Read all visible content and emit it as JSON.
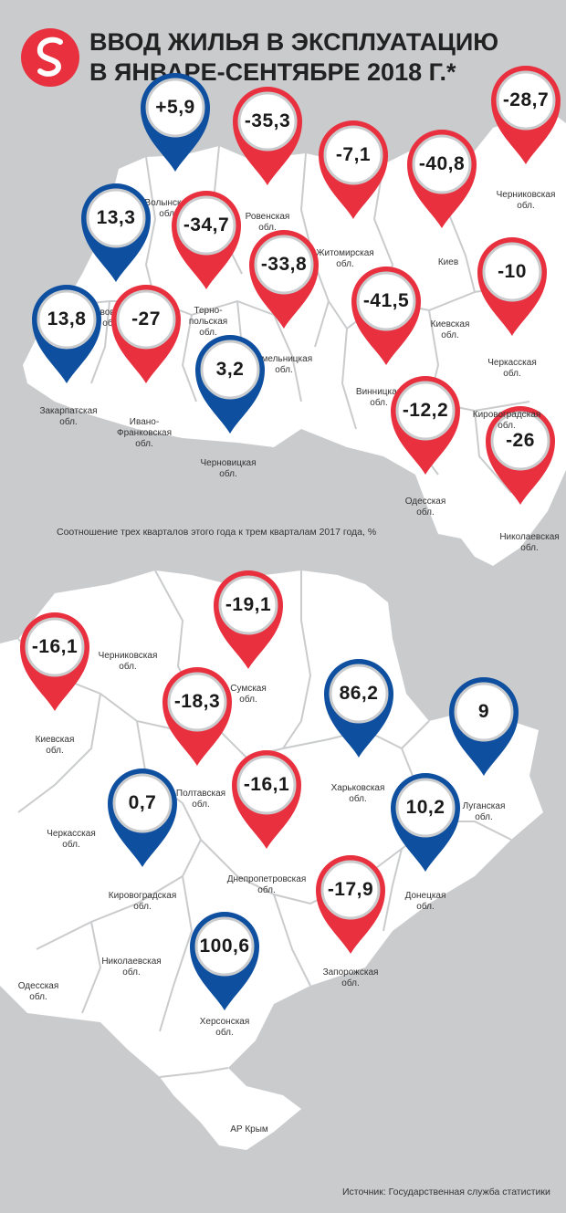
{
  "title": {
    "line1": "ВВОД ЖИЛЬЯ В ЭКСПЛУАТАЦИЮ",
    "line2": "В ЯНВАРЕ-СЕНТЯБРЕ 2018 Г.*"
  },
  "note": "Соотношение трех кварталов этого года к трем кварталам 2017 года, %",
  "source": "Источник: Государственная служба статистики",
  "colors": {
    "positive": "#0e4fa0",
    "negative": "#e8303f",
    "map_land": "#ffffff",
    "background": "#c9cbcd",
    "border": "#c9cbcd"
  },
  "maps": {
    "west": {
      "markers": [
        {
          "value": "+5,9",
          "direction": "up",
          "label": "Волынская\nобл."
        },
        {
          "value": "-35,3",
          "direction": "down",
          "label": "Ровенская\nобл."
        },
        {
          "value": "-7,1",
          "direction": "down",
          "label": "Житомирская\nобл."
        },
        {
          "value": "-40,8",
          "direction": "down",
          "label": "Киев"
        },
        {
          "value": "-28,7",
          "direction": "down",
          "label": "Черниковская\nобл."
        },
        {
          "value": "13,3",
          "direction": "up",
          "label": "Львовская\nобл."
        },
        {
          "value": "-34,7",
          "direction": "down",
          "label": "Терно-\nпольская\nобл."
        },
        {
          "value": "-33,8",
          "direction": "down",
          "label": "Хмельницкая\nобл."
        },
        {
          "value": "-41,5",
          "direction": "down",
          "label": "Винницкая\nобл."
        },
        {
          "value": "-10",
          "direction": "down",
          "label": "Черкасская\nобл."
        },
        {
          "value": "13,8",
          "direction": "up",
          "label": "Закарпатская\nобл."
        },
        {
          "value": "-27",
          "direction": "down",
          "label": "Ивано-\nФранковская\nобл."
        },
        {
          "value": "3,2",
          "direction": "up",
          "label": "Черновицкая\nобл."
        },
        {
          "value": "-12,2",
          "direction": "down",
          "label": "Одесская\nобл."
        },
        {
          "value": "-26",
          "direction": "down",
          "label": "Николаевская\nобл."
        }
      ],
      "labels": [
        {
          "text": "Киевская\nобл."
        },
        {
          "text": "Кировоградская\nобл."
        }
      ]
    },
    "east": {
      "markers": [
        {
          "value": "-19,1",
          "direction": "down",
          "label": "Сумская\nобл."
        },
        {
          "value": "-16,1",
          "direction": "down",
          "label": "Киевская\nобл."
        },
        {
          "value": "-18,3",
          "direction": "down",
          "label": "Полтавская\nобл."
        },
        {
          "value": "86,2",
          "direction": "up",
          "label": "Харьковская\nобл."
        },
        {
          "value": "9",
          "direction": "up",
          "label": "Луганская\nобл."
        },
        {
          "value": "0,7",
          "direction": "up",
          "label": "Кировоградская\nобл."
        },
        {
          "value": "-16,1",
          "direction": "down",
          "label": "Днепропетровская\nобл."
        },
        {
          "value": "10,2",
          "direction": "up",
          "label": "Донецкая\nобл."
        },
        {
          "value": "-17,9",
          "direction": "down",
          "label": "Запорожская\nобл."
        },
        {
          "value": "100,6",
          "direction": "up",
          "label": "Херсонская\nобл."
        }
      ],
      "labels": [
        {
          "text": "Черниковская\nобл."
        },
        {
          "text": "Черкасская\nобл."
        },
        {
          "text": "Николаевская\nобл."
        },
        {
          "text": "Одесская\nобл."
        },
        {
          "text": "АР Крым"
        }
      ]
    }
  }
}
